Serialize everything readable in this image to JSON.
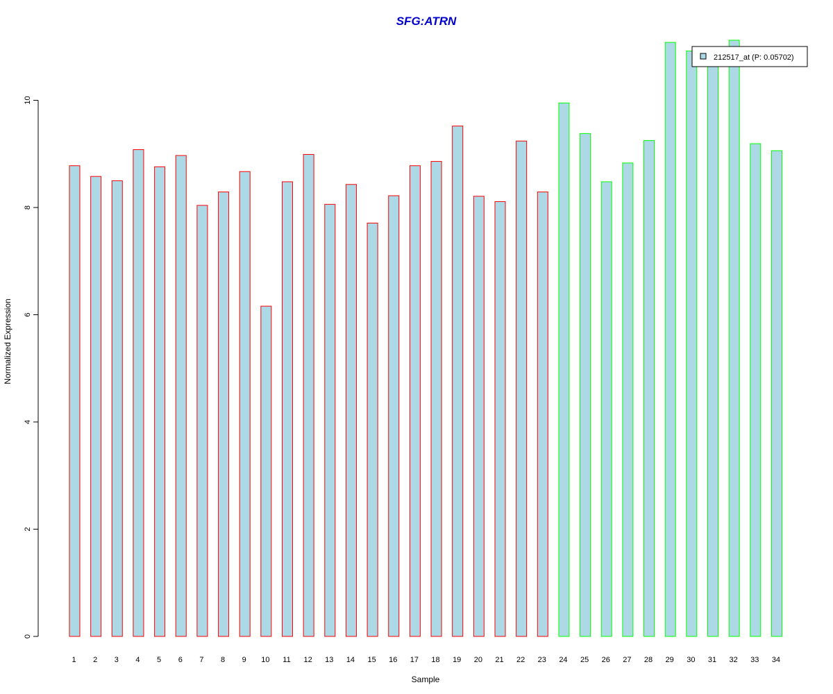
{
  "chart_data": {
    "type": "bar",
    "title": "SFG:ATRN",
    "xlabel": "Sample",
    "ylabel": "Normalized Expression",
    "ylim": [
      0,
      11.2
    ],
    "yticks": [
      0,
      2,
      4,
      6,
      8,
      10
    ],
    "grid": false,
    "legend": {
      "placement": "top-right",
      "entries": [
        {
          "label": "212517_at (P: 0.05702)",
          "fill": "#add8e6"
        }
      ]
    },
    "fill_color": "#add8e6",
    "group_colors": {
      "group_1": "#ff0000",
      "group_2": "#00ff00"
    },
    "categories": [
      "1",
      "2",
      "3",
      "4",
      "5",
      "6",
      "7",
      "8",
      "9",
      "10",
      "11",
      "12",
      "13",
      "14",
      "15",
      "16",
      "17",
      "18",
      "19",
      "20",
      "21",
      "22",
      "23",
      "24",
      "25",
      "26",
      "27",
      "28",
      "29",
      "30",
      "31",
      "32",
      "33",
      "34"
    ],
    "groups": [
      "group_1",
      "group_1",
      "group_1",
      "group_1",
      "group_1",
      "group_1",
      "group_1",
      "group_1",
      "group_1",
      "group_1",
      "group_1",
      "group_1",
      "group_1",
      "group_1",
      "group_1",
      "group_1",
      "group_1",
      "group_1",
      "group_1",
      "group_1",
      "group_1",
      "group_1",
      "group_1",
      "group_2",
      "group_2",
      "group_2",
      "group_2",
      "group_2",
      "group_2",
      "group_2",
      "group_2",
      "group_2",
      "group_2",
      "group_2"
    ],
    "values": [
      8.78,
      8.58,
      8.5,
      9.08,
      8.76,
      8.97,
      8.04,
      8.29,
      8.67,
      6.16,
      8.48,
      8.99,
      8.06,
      8.43,
      7.71,
      8.22,
      8.78,
      8.86,
      9.52,
      8.21,
      8.11,
      9.24,
      8.29,
      9.95,
      9.38,
      8.48,
      8.83,
      9.25,
      11.08,
      10.92,
      10.71,
      11.12,
      9.19,
      9.06
    ]
  }
}
